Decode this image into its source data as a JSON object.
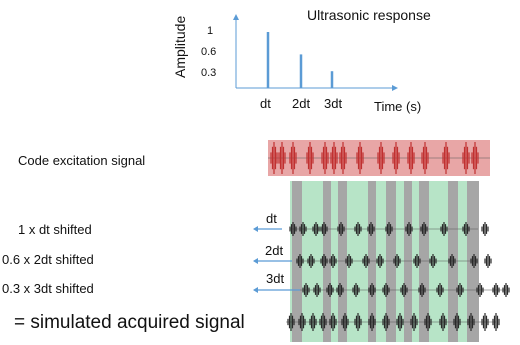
{
  "response_plot": {
    "title": "Ultrasonic response",
    "ylabel": "Amplitude",
    "xlabel": "Time (s)",
    "y_ticks": [
      "1",
      "0.6",
      "0.3"
    ],
    "x_ticks": [
      "dt",
      "2dt",
      "3dt"
    ],
    "impulses": [
      {
        "delay": "dt",
        "amplitude": 1.0
      },
      {
        "delay": "2dt",
        "amplitude": 0.6
      },
      {
        "delay": "3dt",
        "amplitude": 0.3
      }
    ]
  },
  "labels": {
    "code_excitation": "Code excitation signal",
    "shift_1": "1 x dt shifted",
    "shift_2": "0.6 x 2dt shifted",
    "shift_3": "0.3 x 3dt shifted",
    "result": "= simulated acquired signal"
  },
  "shift_tags": [
    "dt",
    "2dt",
    "3dt"
  ],
  "colors": {
    "impulse": "#5b9bd5",
    "code_band": "#e8a6a6",
    "code_wave": "#c03030",
    "green_band": "#b7e4c7",
    "gray_band": "#a6a6a6",
    "wave": "#2a2a2a",
    "arrow": "#5b9bd5"
  }
}
